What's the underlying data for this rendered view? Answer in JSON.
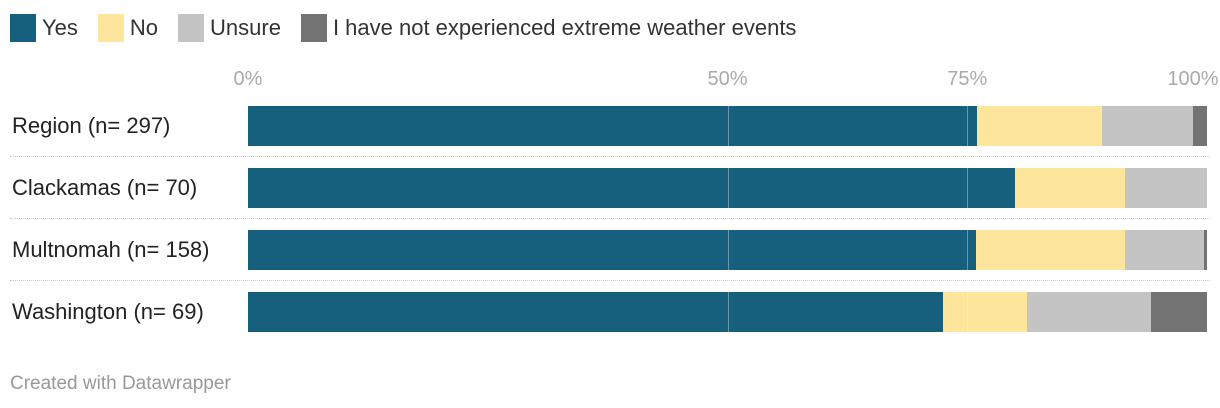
{
  "chart_data": {
    "type": "bar",
    "orientation": "horizontal",
    "stacked": true,
    "legend_position": "top-left",
    "xlim": [
      0,
      100
    ],
    "tick_labels": [
      "0%",
      "50%",
      "75%",
      "100%"
    ],
    "tick_values": [
      0,
      50,
      75,
      100
    ],
    "categories": [
      "Region (n= 297)",
      "Clackamas (n= 70)",
      "Multnomah (n= 158)",
      "Washington (n= 69)"
    ],
    "series": [
      {
        "name": "Yes",
        "color": "#17607d",
        "values": [
          76.0,
          80.0,
          75.9,
          72.5
        ]
      },
      {
        "name": "No",
        "color": "#fde59b",
        "values": [
          13.1,
          11.4,
          15.6,
          8.7
        ]
      },
      {
        "name": "Unsure",
        "color": "#c4c4c4",
        "values": [
          9.4,
          8.6,
          8.2,
          13.0
        ]
      },
      {
        "name": "I have not experienced extreme weather events",
        "color": "#737373",
        "values": [
          1.5,
          0.0,
          0.3,
          5.8
        ]
      }
    ]
  },
  "footer": {
    "credit": "Created with Datawrapper"
  }
}
